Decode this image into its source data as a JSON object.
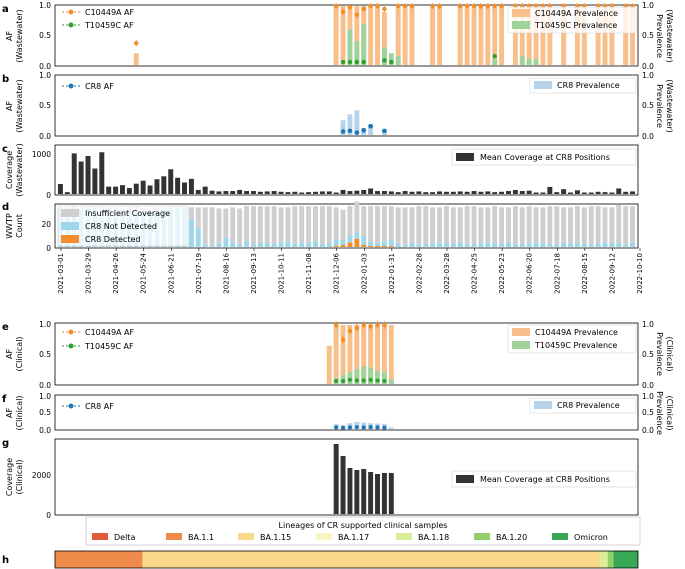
{
  "dates": [
    "2021-03-01",
    "2021-03-29",
    "2021-04-26",
    "2021-05-24",
    "2021-06-21",
    "2021-07-19",
    "2021-08-16",
    "2021-09-13",
    "2021-10-11",
    "2021-11-08",
    "2021-12-06",
    "2022-01-03",
    "2022-01-31",
    "2022-02-28",
    "2022-03-28",
    "2022-04-25",
    "2022-05-23",
    "2022-06-20",
    "2022-07-18",
    "2022-08-15",
    "2022-09-12",
    "2022-10-10"
  ],
  "colors": {
    "c10449a": "#f28e2b",
    "c10449a_light": "#f8bf8a",
    "t10459c": "#2ca02c",
    "t10459c_light": "#9fd39b",
    "cr8": "#1f77b4",
    "cr8_light": "#b7d3ea",
    "coverage": "#333333",
    "insufficient": "#cfcfcf",
    "not_detected": "#9dd7ea",
    "detected": "#f28e2b"
  },
  "panels": {
    "a": {
      "label": "a",
      "ylabel_left": "AF",
      "ylabel_left2": "(Wastewater)",
      "ylabel_right": "Prevalence",
      "ylabel_right2": "(Wastewater)",
      "legend_left": [
        "C10449A AF",
        "T10459C AF"
      ],
      "legend_right": [
        "C10449A Prevalence",
        "T10459C Prevalence"
      ],
      "yticks": [
        "0.0",
        "0.5",
        "1.0"
      ]
    },
    "b": {
      "label": "b",
      "ylabel_left": "AF",
      "ylabel_left2": "(Wastewater)",
      "ylabel_right": "Prevalence",
      "ylabel_right2": "(Wastewater)",
      "legend_left": [
        "CR8 AF"
      ],
      "legend_right": [
        "CR8 Prevalence"
      ],
      "yticks": [
        "0.0",
        "0.5",
        "1.0"
      ]
    },
    "c": {
      "label": "c",
      "ylabel": "Coverage",
      "ylabel2": "(Wastewater)",
      "legend": [
        "Mean Coverage at CR8 Positions"
      ],
      "yticks": [
        "0",
        "1000"
      ]
    },
    "d": {
      "label": "d",
      "ylabel": "WWTP",
      "ylabel2": "Count",
      "legend": [
        "Insufficient Coverage",
        "CR8 Not Detected",
        "CR8 Detected"
      ],
      "yticks": [
        "0",
        "20"
      ]
    },
    "e": {
      "label": "e",
      "ylabel_left": "AF",
      "ylabel_left2": "(Clinical)",
      "ylabel_right": "Prevalence",
      "ylabel_right2": "(Clinical)",
      "legend_left": [
        "C10449A AF",
        "T10459C AF"
      ],
      "legend_right": [
        "C10449A Prevalence",
        "T10459C Prevalence"
      ],
      "yticks": [
        "0.0",
        "0.5",
        "1.0"
      ]
    },
    "f": {
      "label": "f",
      "ylabel_left": "AF",
      "ylabel_left2": "(Clinical)",
      "ylabel_right": "Prevalence",
      "ylabel_right2": "(Clinical)",
      "legend_left": [
        "CR8 AF"
      ],
      "legend_right": [
        "CR8 Prevalence"
      ],
      "yticks": [
        "0.0",
        "0.5",
        "1.0"
      ]
    },
    "g": {
      "label": "g",
      "ylabel": "Coverage",
      "ylabel2": "(Clinical)",
      "legend": [
        "Mean Coverage at CR8 Positions"
      ],
      "yticks": [
        "0",
        "2000"
      ]
    },
    "h": {
      "label": "h",
      "legend_title": "Lineages of CR supported clinical samples",
      "lineages": [
        {
          "name": "Delta",
          "color": "#e15a3c",
          "share": 0.0
        },
        {
          "name": "BA.1.1",
          "color": "#f08a4b",
          "share": 0.15
        },
        {
          "name": "BA.1.15",
          "color": "#fbd98a",
          "share": 0.786
        },
        {
          "name": "BA.1.17",
          "color": "#fcf5c2",
          "share": 0.0
        },
        {
          "name": "BA.1.18",
          "color": "#d9ee9a",
          "share": 0.012
        },
        {
          "name": "BA.1.20",
          "color": "#93cf6a",
          "share": 0.01
        },
        {
          "name": "Omicron",
          "color": "#38a857",
          "share": 0.042
        }
      ]
    }
  },
  "chart_data": [
    {
      "panel": "a",
      "type": "bar+scatter",
      "x_unit": "week index (0 = 2021-03-01)",
      "c10449a_prevalence": [
        [
          11,
          0.2
        ],
        [
          40,
          1.0
        ],
        [
          41,
          1.0
        ],
        [
          42,
          1.0
        ],
        [
          43,
          1.0
        ],
        [
          44,
          1.0
        ],
        [
          45,
          1.0
        ],
        [
          46,
          1.0
        ],
        [
          47,
          0.9
        ],
        [
          49,
          1.0
        ],
        [
          50,
          1.0
        ],
        [
          51,
          1.0
        ],
        [
          54,
          1.0
        ],
        [
          55,
          1.0
        ],
        [
          58,
          1.0
        ],
        [
          59,
          1.0
        ],
        [
          60,
          1.0
        ],
        [
          61,
          1.0
        ],
        [
          62,
          1.0
        ],
        [
          63,
          1.0
        ],
        [
          64,
          1.0
        ],
        [
          66,
          1.0
        ],
        [
          67,
          1.0
        ],
        [
          68,
          1.0
        ],
        [
          69,
          1.0
        ],
        [
          70,
          1.0
        ],
        [
          71,
          1.0
        ],
        [
          73,
          1.0
        ],
        [
          75,
          1.0
        ],
        [
          76,
          1.0
        ],
        [
          78,
          1.0
        ],
        [
          79,
          1.0
        ],
        [
          80,
          1.0
        ],
        [
          82,
          1.0
        ],
        [
          83,
          1.0
        ]
      ],
      "t10459c_prevalence": [
        [
          42,
          0.6
        ],
        [
          43,
          0.4
        ],
        [
          44,
          0.7
        ],
        [
          47,
          0.3
        ],
        [
          48,
          0.2
        ],
        [
          49,
          0.15
        ],
        [
          63,
          0.1
        ],
        [
          67,
          0.15
        ],
        [
          68,
          0.1
        ],
        [
          69,
          0.1
        ]
      ],
      "c10449a_af": [
        [
          11,
          0.37
        ],
        [
          40,
          1.0
        ],
        [
          41,
          0.9
        ],
        [
          42,
          0.98
        ],
        [
          43,
          0.85
        ],
        [
          44,
          0.95
        ],
        [
          45,
          1.0
        ],
        [
          46,
          1.0
        ],
        [
          47,
          0.95
        ],
        [
          49,
          1.0
        ],
        [
          50,
          1.0
        ],
        [
          51,
          1.0
        ],
        [
          54,
          1.0
        ],
        [
          55,
          1.0
        ],
        [
          58,
          1.0
        ],
        [
          59,
          1.0
        ],
        [
          60,
          1.0
        ],
        [
          61,
          1.0
        ],
        [
          62,
          1.0
        ],
        [
          63,
          1.0
        ],
        [
          64,
          1.0
        ],
        [
          66,
          1.0
        ],
        [
          67,
          1.0
        ],
        [
          68,
          1.0
        ],
        [
          69,
          1.0
        ],
        [
          70,
          1.0
        ],
        [
          71,
          1.0
        ],
        [
          73,
          1.0
        ],
        [
          75,
          1.0
        ],
        [
          76,
          1.0
        ],
        [
          78,
          1.0
        ],
        [
          79,
          1.0
        ],
        [
          80,
          1.0
        ],
        [
          82,
          1.0
        ],
        [
          83,
          1.0
        ]
      ],
      "t10459c_af": [
        [
          41,
          0.05
        ],
        [
          42,
          0.05
        ],
        [
          43,
          0.05
        ],
        [
          44,
          0.05
        ],
        [
          47,
          0.08
        ],
        [
          48,
          0.05
        ],
        [
          63,
          0.15
        ]
      ],
      "ylim": [
        0,
        1
      ]
    },
    {
      "panel": "b",
      "type": "bar+scatter",
      "cr8_prevalence": [
        [
          41,
          0.25
        ],
        [
          42,
          0.35
        ],
        [
          43,
          0.42
        ],
        [
          44,
          0.12
        ],
        [
          45,
          0.18
        ],
        [
          47,
          0.1
        ]
      ],
      "cr8_af": [
        [
          41,
          0.06
        ],
        [
          42,
          0.07
        ],
        [
          43,
          0.04
        ],
        [
          44,
          0.08
        ],
        [
          45,
          0.15
        ],
        [
          47,
          0.07
        ]
      ],
      "ylim": [
        0,
        1
      ]
    },
    {
      "panel": "c",
      "type": "bar",
      "values": [
        270,
        50,
        1100,
        880,
        1030,
        690,
        1130,
        200,
        200,
        240,
        160,
        280,
        360,
        230,
        400,
        480,
        670,
        440,
        310,
        410,
        110,
        200,
        90,
        70,
        80,
        80,
        110,
        80,
        80,
        60,
        70,
        80,
        60,
        50,
        60,
        40,
        50,
        60,
        70,
        70,
        40,
        110,
        80,
        90,
        110,
        150,
        80,
        80,
        70,
        50,
        80,
        60,
        70,
        50,
        50,
        70,
        60,
        60,
        70,
        60,
        80,
        60,
        70,
        50,
        60,
        80,
        110,
        80,
        90,
        40,
        40,
        190,
        50,
        130,
        40,
        100,
        40,
        40,
        60,
        50,
        40,
        150,
        60,
        70
      ],
      "ylim": [
        0,
        1300
      ]
    },
    {
      "panel": "d",
      "type": "stacked-bar",
      "insufficient": [
        1,
        1,
        2,
        3,
        2,
        1,
        2,
        1,
        2,
        2,
        2,
        3,
        4,
        2,
        3,
        2,
        2,
        3,
        2,
        10,
        18,
        32,
        33,
        30,
        25,
        30,
        31,
        30,
        33,
        32,
        31,
        32,
        30,
        29,
        32,
        31,
        32,
        30,
        33,
        32,
        28,
        26,
        25,
        27,
        26,
        30,
        31,
        30,
        29,
        31,
        32,
        30,
        33,
        32,
        31,
        30,
        32,
        31,
        30,
        33,
        32,
        31,
        30,
        32,
        31,
        30,
        33,
        31,
        32,
        30,
        31,
        32,
        33,
        31,
        30,
        32,
        31,
        33,
        32,
        30,
        31,
        32,
        33,
        31
      ],
      "not_detected": [
        33,
        33,
        33,
        31,
        33,
        34,
        32,
        33,
        32,
        31,
        32,
        32,
        29,
        31,
        31,
        32,
        33,
        32,
        33,
        24,
        16,
        2,
        1,
        3,
        8,
        4,
        2,
        5,
        2,
        3,
        4,
        3,
        4,
        5,
        3,
        4,
        3,
        5,
        2,
        3,
        5,
        4,
        6,
        5,
        7,
        4,
        3,
        4,
        5,
        3,
        2,
        4,
        2,
        3,
        3,
        4,
        3,
        3,
        4,
        2,
        3,
        3,
        4,
        3,
        3,
        4,
        2,
        3,
        3,
        4,
        3,
        3,
        2,
        3,
        4,
        3,
        3,
        2,
        3,
        4,
        3,
        4,
        2,
        4
      ],
      "detected": [
        0,
        0,
        0,
        0,
        0,
        0,
        0,
        0,
        0,
        0,
        0,
        0,
        0,
        0,
        0,
        0,
        0,
        0,
        0,
        0,
        0,
        0,
        0,
        0,
        0,
        0,
        0,
        0,
        0,
        0,
        0,
        0,
        0,
        0,
        0,
        0,
        0,
        0,
        0,
        0,
        1,
        2,
        4,
        7,
        2,
        1,
        1,
        1,
        1,
        0,
        0,
        0,
        0,
        0,
        0,
        0,
        0,
        0,
        0,
        0,
        0,
        0,
        0,
        0,
        0,
        0,
        0,
        0,
        0,
        0,
        0,
        0,
        0,
        0,
        0,
        0,
        0,
        0,
        0,
        0,
        0,
        0,
        0,
        0
      ],
      "ylim": [
        0,
        36
      ]
    },
    {
      "panel": "e",
      "type": "bar+scatter",
      "c10449a_prevalence": [
        [
          39,
          0.65
        ],
        [
          40,
          1.0
        ],
        [
          41,
          1.0
        ],
        [
          42,
          1.0
        ],
        [
          43,
          1.0
        ],
        [
          44,
          1.0
        ],
        [
          45,
          1.0
        ],
        [
          46,
          1.0
        ],
        [
          47,
          1.0
        ],
        [
          48,
          1.0
        ]
      ],
      "t10459c_prevalence": [
        [
          40,
          0.1
        ],
        [
          41,
          0.15
        ],
        [
          42,
          0.2
        ],
        [
          43,
          0.25
        ],
        [
          44,
          0.3
        ],
        [
          45,
          0.28
        ],
        [
          46,
          0.22
        ],
        [
          47,
          0.2
        ],
        [
          48,
          0.08
        ]
      ],
      "c10449a_af": [
        [
          40,
          1.0
        ],
        [
          41,
          0.75
        ],
        [
          42,
          0.9
        ],
        [
          43,
          0.95
        ],
        [
          44,
          1.0
        ],
        [
          45,
          0.98
        ],
        [
          46,
          1.0
        ],
        [
          47,
          1.0
        ]
      ],
      "t10459c_af": [
        [
          40,
          0.05
        ],
        [
          41,
          0.05
        ],
        [
          42,
          0.07
        ],
        [
          43,
          0.06
        ],
        [
          44,
          0.06
        ],
        [
          45,
          0.07
        ],
        [
          46,
          0.06
        ],
        [
          47,
          0.05
        ]
      ],
      "ylim": [
        0,
        1
      ]
    },
    {
      "panel": "f",
      "type": "bar+scatter",
      "cr8_prevalence": [
        [
          40,
          0.15
        ],
        [
          41,
          0.12
        ],
        [
          42,
          0.18
        ],
        [
          43,
          0.22
        ],
        [
          44,
          0.2
        ],
        [
          45,
          0.18
        ],
        [
          46,
          0.17
        ],
        [
          47,
          0.16
        ],
        [
          48,
          0.05
        ]
      ],
      "cr8_af": [
        [
          40,
          0.05
        ],
        [
          41,
          0.04
        ],
        [
          42,
          0.05
        ],
        [
          43,
          0.06
        ],
        [
          44,
          0.05
        ],
        [
          45,
          0.06
        ],
        [
          46,
          0.05
        ],
        [
          47,
          0.04
        ]
      ],
      "ylim": [
        0,
        1
      ]
    },
    {
      "panel": "g",
      "type": "bar",
      "bars": [
        [
          40,
          3500
        ],
        [
          41,
          2900
        ],
        [
          42,
          2300
        ],
        [
          43,
          2200
        ],
        [
          44,
          2250
        ],
        [
          45,
          2100
        ],
        [
          46,
          2000
        ],
        [
          47,
          2050
        ],
        [
          48,
          2050
        ]
      ],
      "ylim": [
        0,
        3700
      ]
    },
    {
      "panel": "h",
      "type": "stacked-strip",
      "categories": [
        "Delta",
        "BA.1.1",
        "BA.1.15",
        "BA.1.17",
        "BA.1.18",
        "BA.1.20",
        "Omicron"
      ],
      "values": [
        0.0,
        0.15,
        0.786,
        0.0,
        0.012,
        0.01,
        0.042
      ]
    }
  ]
}
